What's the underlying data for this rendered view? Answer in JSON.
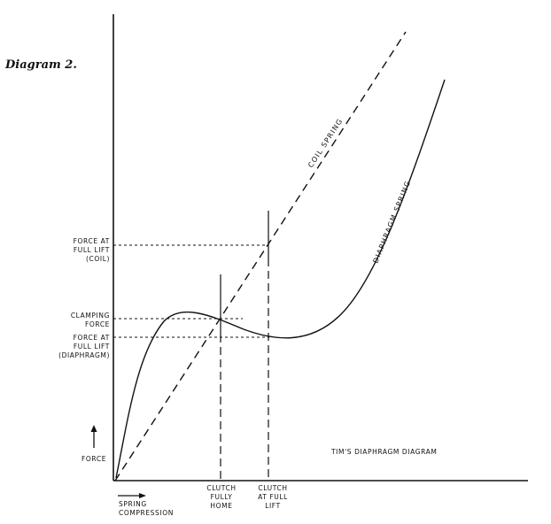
{
  "title": "Diagram 2.",
  "y_labels": {
    "force_full_lift_coil": [
      "FORCE AT",
      "FULL LIFT",
      "(COIL)"
    ],
    "clamping_force": [
      "CLAMPING",
      "FORCE"
    ],
    "force_full_lift_diaphragm": [
      "FORCE AT",
      "FULL LIFT",
      "(DIAPHRAGM)"
    ],
    "force": "FORCE"
  },
  "x_labels": {
    "spring_compression": [
      "SPRING",
      "COMPRESSION"
    ],
    "clutch_fully_home": [
      "CLUTCH",
      "FULLY",
      "HOME"
    ],
    "clutch_full_lift": [
      "CLUTCH",
      "AT FULL",
      "LIFT"
    ]
  },
  "curve_labels": {
    "coil_spring": "COIL SPRING",
    "diaphragm_spring": "DIAPHRAGM SPRING"
  },
  "caption": "TIM'S DIAPHRAGM DIAGRAM"
}
